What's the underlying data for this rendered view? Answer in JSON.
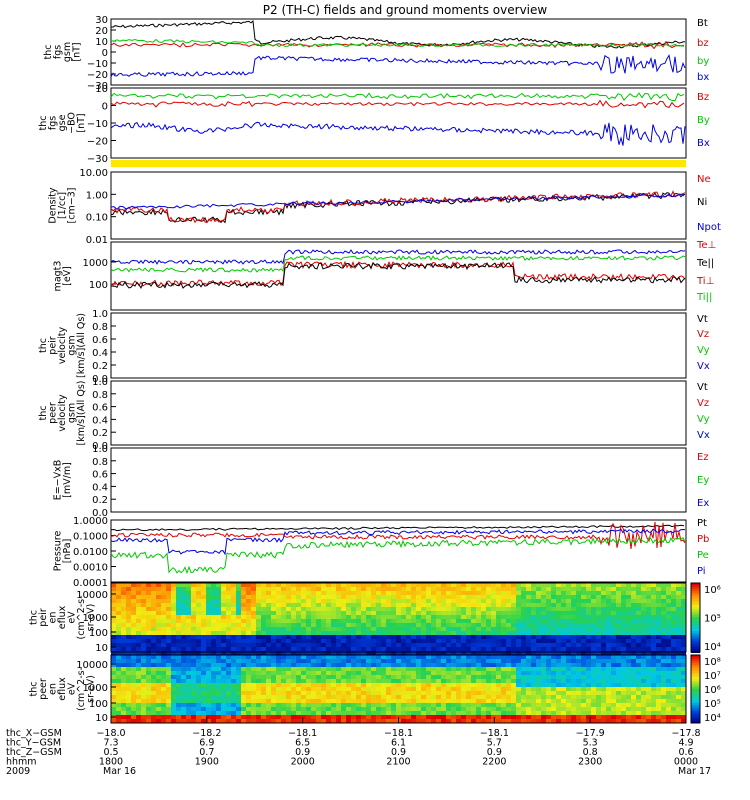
{
  "title": "P2 (TH-C) fields and ground moments overview",
  "chart_data": [
    {
      "type": "line",
      "ylabel": [
        "thc",
        "fgs",
        "gsm",
        "[nT]"
      ],
      "yticks": [
        "30",
        "20",
        "10",
        "0",
        "−10",
        "−20",
        "−30"
      ],
      "ylim": [
        -30,
        30
      ],
      "legend": [
        {
          "label": "Bt",
          "color": "#000000"
        },
        {
          "label": "bz",
          "color": "#e00000"
        },
        {
          "label": "by",
          "color": "#00c800"
        },
        {
          "label": "bx",
          "color": "#0000e0"
        }
      ]
    },
    {
      "type": "line",
      "ylabel": [
        "thc",
        "fgs",
        "gse",
        "−BO",
        "[nT]"
      ],
      "yticks": [
        "10",
        "0",
        "−10",
        "−20",
        "−30"
      ],
      "ylim": [
        -35,
        15
      ],
      "legend": [
        {
          "label": "Bz",
          "color": "#e00000"
        },
        {
          "label": "By",
          "color": "#00c800"
        },
        {
          "label": "Bx",
          "color": "#0000e0"
        }
      ]
    },
    {
      "type": "line",
      "ylabel": [
        "Density",
        "[1/cc]",
        "[cm−3]"
      ],
      "yticks": [
        "10.00",
        "1.00",
        "0.10",
        "0.01"
      ],
      "ylim": [
        0.01,
        10
      ],
      "scale": "log",
      "legend": [
        {
          "label": "Ne",
          "color": "#e00000"
        },
        {
          "label": "Ni",
          "color": "#000000"
        },
        {
          "label": "Npot",
          "color": "#0000e0"
        }
      ]
    },
    {
      "type": "line",
      "ylabel": [
        "magt3",
        "[eV]"
      ],
      "yticks": [
        "1000",
        "100"
      ],
      "scale": "log",
      "legend": [
        {
          "label": "Te⊥",
          "color": "#e00000"
        },
        {
          "label": "Te||",
          "color": "#000000"
        },
        {
          "label": "Ti⊥",
          "color": "#e00000"
        },
        {
          "label": "Ti||",
          "color": "#00c800"
        }
      ]
    },
    {
      "type": "line",
      "ylabel": [
        "thc",
        "peir",
        "velocity",
        "gsm",
        "[km/s](All Qs)"
      ],
      "yticks": [
        "1.0",
        "0.8",
        "0.6",
        "0.4",
        "0.2",
        "0.0"
      ],
      "ylim": [
        0,
        1
      ],
      "legend": [
        {
          "label": "Vt",
          "color": "#000000"
        },
        {
          "label": "Vz",
          "color": "#e00000"
        },
        {
          "label": "Vy",
          "color": "#00c800"
        },
        {
          "label": "Vx",
          "color": "#0000e0"
        }
      ]
    },
    {
      "type": "line",
      "ylabel": [
        "thc",
        "peer",
        "velocity",
        "gsm",
        "[km/s](All Qs)"
      ],
      "yticks": [
        "1.0",
        "0.8",
        "0.6",
        "0.4",
        "0.2",
        "0.0"
      ],
      "ylim": [
        0,
        1
      ],
      "legend": [
        {
          "label": "Vt",
          "color": "#000000"
        },
        {
          "label": "Vz",
          "color": "#e00000"
        },
        {
          "label": "Vy",
          "color": "#00c800"
        },
        {
          "label": "Vx",
          "color": "#0000e0"
        }
      ]
    },
    {
      "type": "line",
      "ylabel": [
        "E=−VxB",
        "[mV/m]"
      ],
      "yticks": [
        "1.0",
        "0.8",
        "0.6",
        "0.4",
        "0.2",
        "0.0"
      ],
      "ylim": [
        0,
        1
      ],
      "legend": [
        {
          "label": "Ez",
          "color": "#e00000"
        },
        {
          "label": "Ey",
          "color": "#00c800"
        },
        {
          "label": "Ex",
          "color": "#0000e0"
        }
      ]
    },
    {
      "type": "line",
      "ylabel": [
        "Pressure",
        "[nPa]"
      ],
      "yticks": [
        "1.0000",
        "0.1000",
        "0.0100",
        "0.0010",
        "0.0001"
      ],
      "ylim": [
        0.0001,
        1
      ],
      "scale": "log",
      "legend": [
        {
          "label": "Pt",
          "color": "#000000"
        },
        {
          "label": "Pb",
          "color": "#e00000"
        },
        {
          "label": "Pe",
          "color": "#00c800"
        },
        {
          "label": "Pi",
          "color": "#0000e0"
        }
      ]
    },
    {
      "type": "heatmap",
      "ylabel": [
        "thc",
        "peir",
        "en",
        "eflux",
        "eV",
        "(cm^2-s-",
        "sr-eV)"
      ],
      "yticks": [
        "10000",
        "1000",
        "100",
        "10"
      ],
      "scale": "log",
      "colorbar_ticks": [
        "10⁶",
        "10⁵",
        "10⁴"
      ]
    },
    {
      "type": "heatmap",
      "ylabel": [
        "thc",
        "peer",
        "en",
        "eflux",
        "eV",
        "(cm^2-s-",
        "sr-eV)"
      ],
      "yticks": [
        "10000",
        "1000",
        "100",
        "10"
      ],
      "scale": "log",
      "colorbar_ticks": [
        "10⁸",
        "10⁷",
        "10⁶",
        "10⁵",
        "10⁴"
      ]
    }
  ],
  "x_axis": {
    "rows": [
      {
        "label": "thc_X−GSM",
        "values": [
          "−18.0",
          "−18.2",
          "−18.1",
          "−18.1",
          "−18.1",
          "−17.9",
          "−17.8"
        ]
      },
      {
        "label": "thc_Y−GSM",
        "values": [
          "7.3",
          "6.9",
          "6.5",
          "6.1",
          "5.7",
          "5.3",
          "4.9"
        ]
      },
      {
        "label": "thc_Z−GSM",
        "values": [
          "0.5",
          "0.7",
          "0.9",
          "0.9",
          "0.9",
          "0.8",
          "0.6"
        ]
      },
      {
        "label": "hhmm",
        "values": [
          "1800",
          "1900",
          "2000",
          "2100",
          "2200",
          "2300",
          "0000"
        ]
      },
      {
        "label": "2009",
        "values": [
          "Mar 16",
          "",
          "",
          "",
          "",
          "",
          "Mar 17"
        ]
      }
    ]
  }
}
